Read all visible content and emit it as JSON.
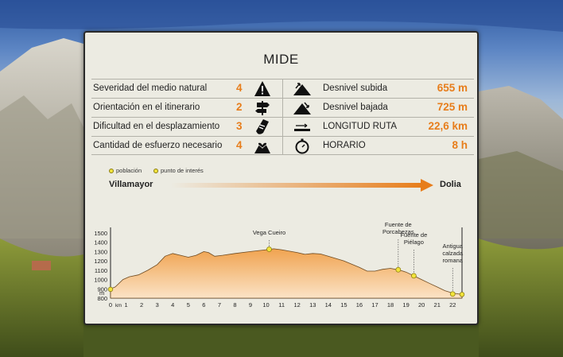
{
  "title": "MIDE",
  "mide": [
    {
      "label": "Severidad del medio natural",
      "value": "4",
      "icon": "warning-icon"
    },
    {
      "label": "Orientación en el itinerario",
      "value": "2",
      "icon": "signpost-icon"
    },
    {
      "label": "Dificultad en el desplazamiento",
      "value": "3",
      "icon": "boot-icon"
    },
    {
      "label": "Cantidad de esfuerzo necesario",
      "value": "4",
      "icon": "effort-heart-icon"
    }
  ],
  "route": [
    {
      "label": "Desnivel subida",
      "value": "655 m",
      "icon": "ascent-icon"
    },
    {
      "label": "Desnivel bajada",
      "value": "725 m",
      "icon": "descent-icon"
    },
    {
      "label": "LONGITUD RUTA",
      "value": "22,6 km",
      "icon": "length-icon"
    },
    {
      "label": "HORARIO",
      "value": "8 h",
      "icon": "stopwatch-icon"
    }
  ],
  "legend": {
    "town": "población",
    "poi": "punto de interés"
  },
  "start": "Villamayor",
  "end": "Dolia",
  "colors": {
    "accent": "#e77d1b",
    "profile_fill": "#f0a350",
    "poi": "#f2e43c"
  },
  "chart_data": {
    "type": "area",
    "xlabel": "km",
    "ylabel": "m",
    "xlim": [
      0,
      22.6
    ],
    "ylim": [
      800,
      1500
    ],
    "x_ticks": [
      "0",
      "1",
      "2",
      "3",
      "4",
      "5",
      "6",
      "7",
      "8",
      "9",
      "10",
      "11",
      "12",
      "13",
      "14",
      "15",
      "16",
      "17",
      "18",
      "19",
      "20",
      "21",
      "22"
    ],
    "y_ticks": [
      "800",
      "900",
      "1000",
      "1100",
      "1200",
      "1300",
      "1400",
      "1500"
    ],
    "x": [
      0,
      0.3,
      0.8,
      1.2,
      1.8,
      2.4,
      3.0,
      3.5,
      4.0,
      4.5,
      5.0,
      5.5,
      6.0,
      6.3,
      6.7,
      7.2,
      8.0,
      9.0,
      10.0,
      10.5,
      11.0,
      12.0,
      12.5,
      13.0,
      13.5,
      14.0,
      15.0,
      16.0,
      16.5,
      17.0,
      17.5,
      18.0,
      18.5,
      19.0,
      19.5,
      20.0,
      20.5,
      21.0,
      21.5,
      22.0,
      22.6
    ],
    "y": [
      900,
      920,
      1000,
      1030,
      1050,
      1100,
      1160,
      1250,
      1280,
      1260,
      1240,
      1260,
      1300,
      1290,
      1250,
      1260,
      1280,
      1300,
      1320,
      1330,
      1320,
      1290,
      1270,
      1280,
      1275,
      1250,
      1200,
      1130,
      1090,
      1090,
      1110,
      1120,
      1105,
      1080,
      1040,
      1000,
      960,
      920,
      880,
      855,
      840
    ],
    "points": [
      {
        "label": "Vega Cueiro",
        "x": 10.2,
        "y": 1325
      },
      {
        "label": "Fuente de Porcabezas",
        "x": 18.5,
        "y": 1105
      },
      {
        "label": "Fuente de Piélago",
        "x": 19.5,
        "y": 1040
      },
      {
        "label": "Antigua calzada romana",
        "x": 22.0,
        "y": 845
      }
    ],
    "towns": [
      {
        "label": "Villamayor",
        "x": 0,
        "y": 895
      },
      {
        "label": "Dolia",
        "x": 22.6,
        "y": 840
      }
    ]
  }
}
